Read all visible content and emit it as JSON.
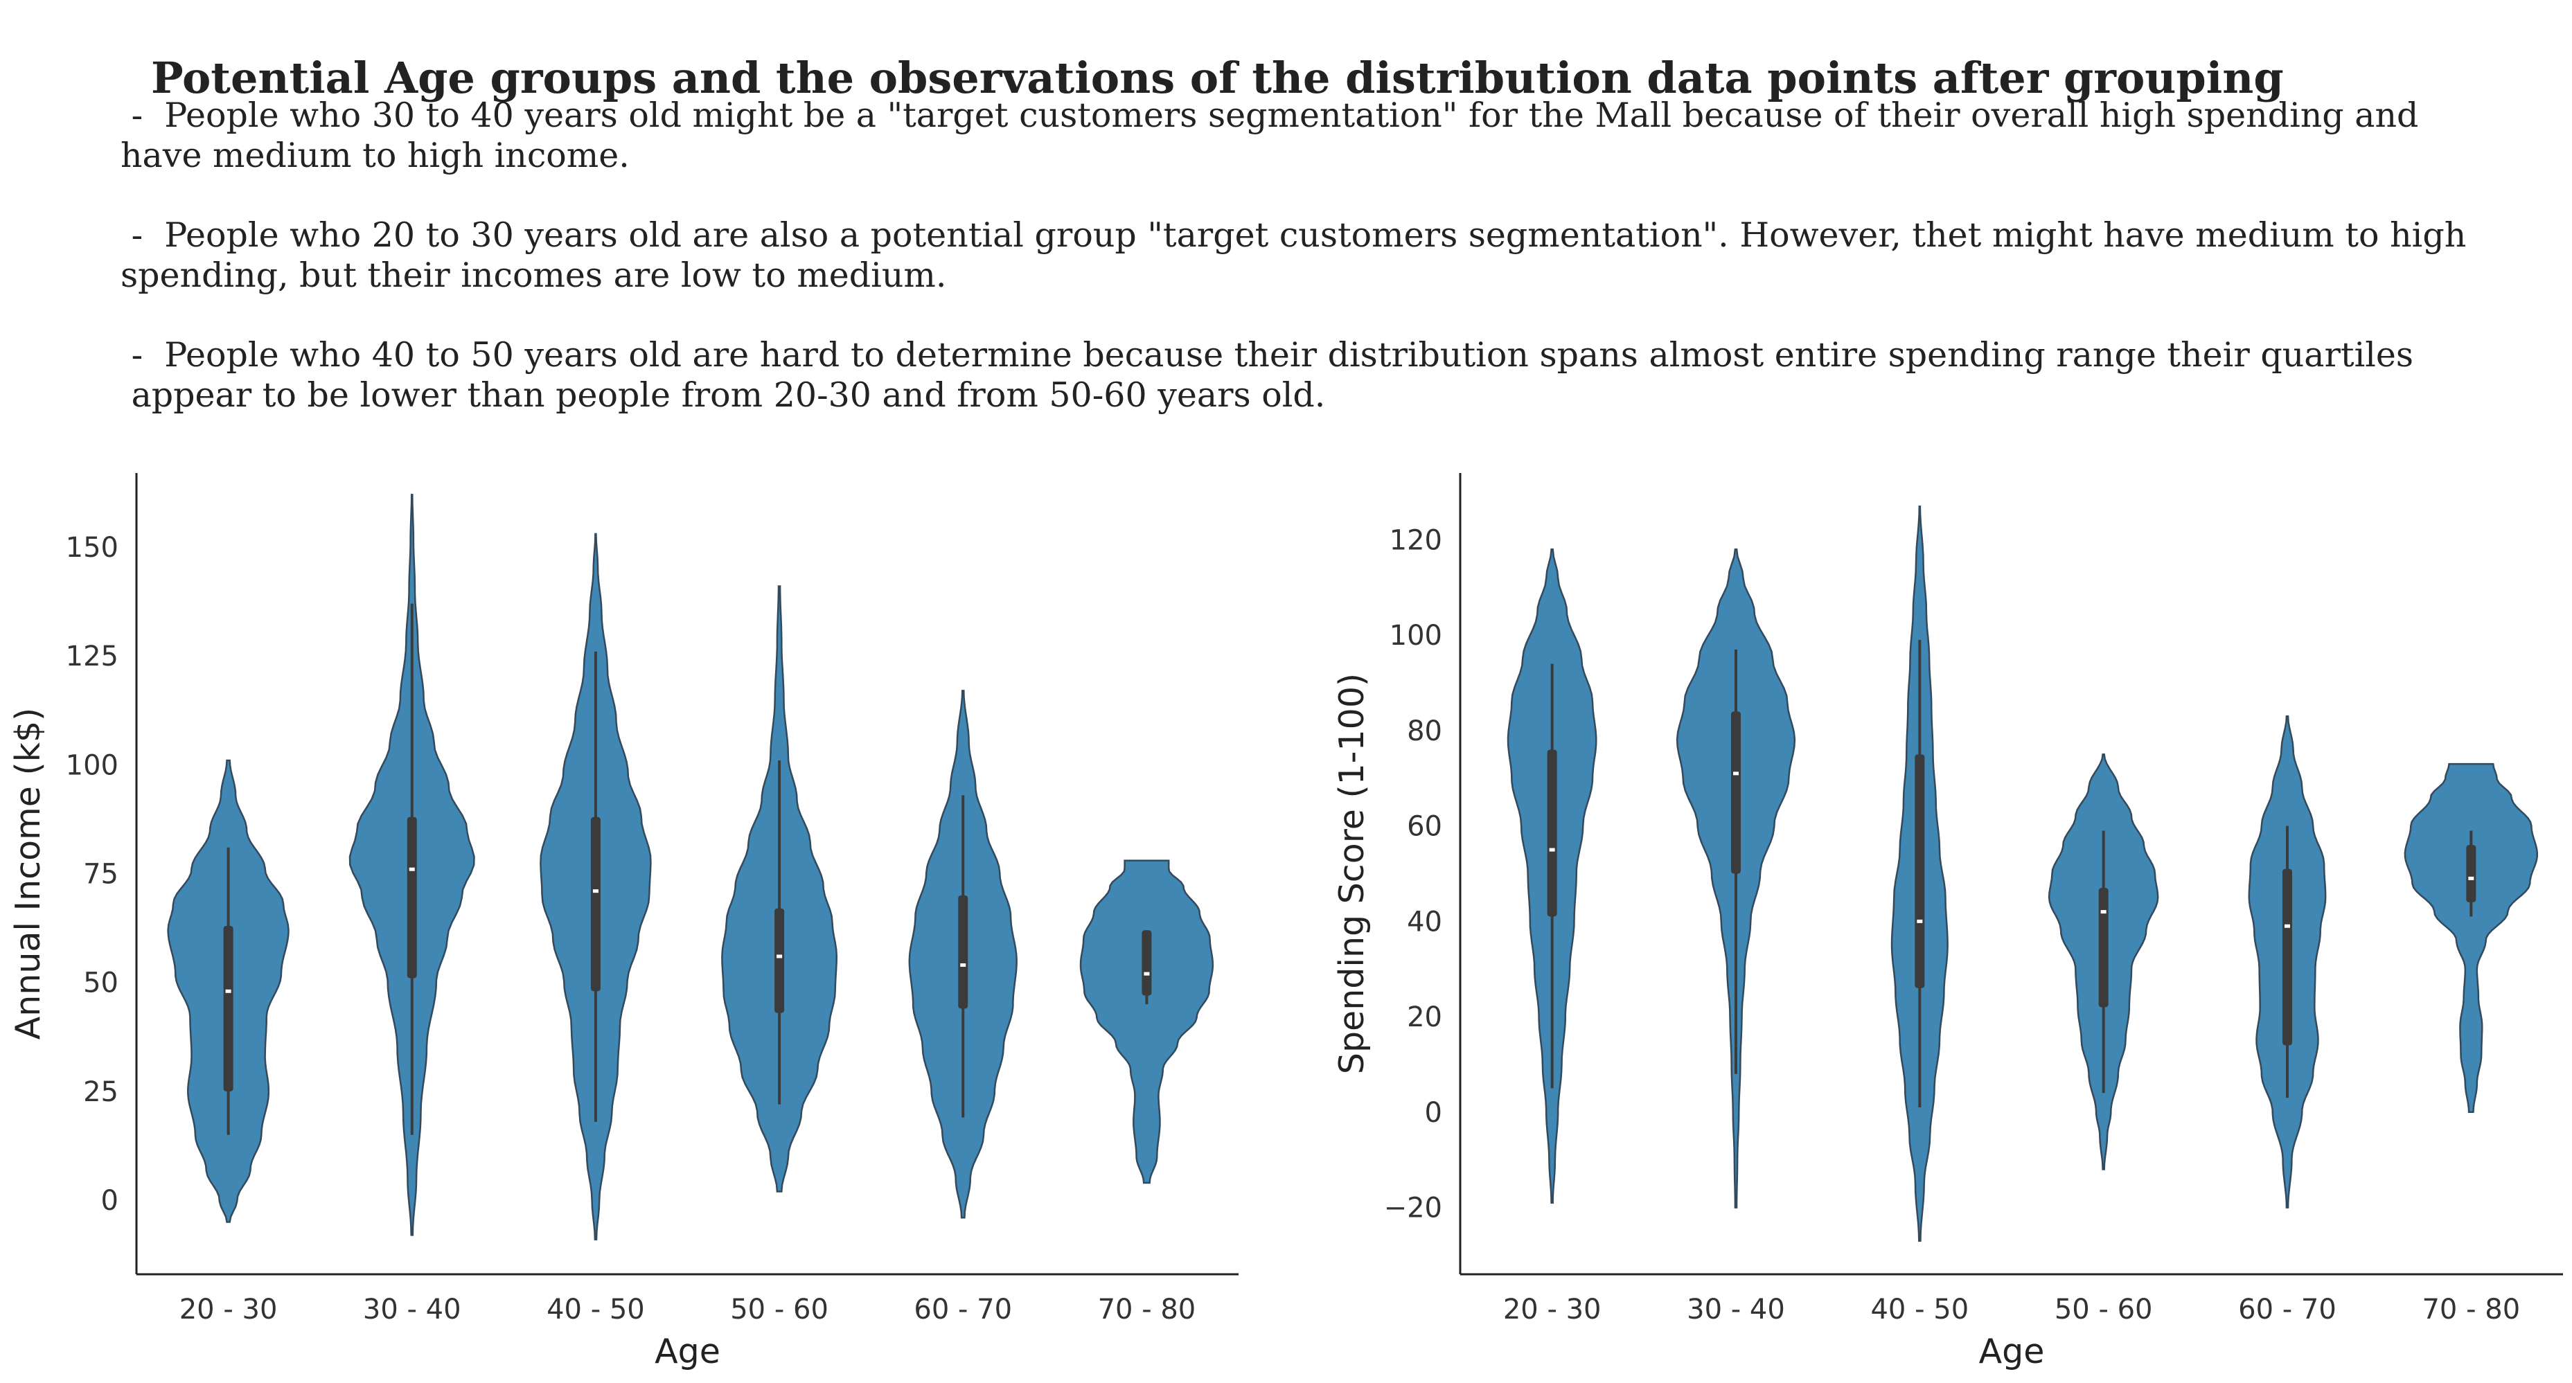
{
  "title": "Potential Age groups and the observations of the distribution data points after grouping",
  "notes": [
    " -  People who 30 to 40 years old might be a \"target customers segmentation\" for the Mall because of their overall high spending and\nhave medium to high income.",
    " -  People who 20 to 30 years old are also a potential group \"target customers segmentation\". However, thet might have medium to high\nspending, but their incomes are low to medium.",
    " -  People who 40 to 50 years old are hard to determine because their distribution spans almost entire spending range their quartiles\n appear to be lower than people from 20-30 and from 50-60 years old."
  ],
  "colors": {
    "violin_fill": "#4187b4",
    "violin_edge": "#33495c",
    "box": "#3b3b3b",
    "median": "#ffffff",
    "axis": "#222222"
  },
  "chart_data": [
    {
      "type": "violin",
      "xlabel": "Age",
      "ylabel": "Annual Income (k$)",
      "categories": [
        "20 - 30",
        "30 - 40",
        "40 - 50",
        "50 - 60",
        "60 - 70",
        "70 - 80"
      ],
      "ylim": [
        -17,
        167
      ],
      "yticks": [
        0,
        25,
        50,
        75,
        100,
        125,
        150
      ],
      "groups": [
        {
          "category": "20 - 30",
          "min": -5,
          "max": 101,
          "whisker_low": 15,
          "whisker_high": 81,
          "q1": 25,
          "median": 48,
          "q3": 63,
          "shape": [
            [
              -5,
              0.02
            ],
            [
              0,
              0.12
            ],
            [
              7,
              0.3
            ],
            [
              15,
              0.45
            ],
            [
              25,
              0.55
            ],
            [
              33,
              0.5
            ],
            [
              42,
              0.52
            ],
            [
              52,
              0.72
            ],
            [
              62,
              0.82
            ],
            [
              68,
              0.75
            ],
            [
              76,
              0.5
            ],
            [
              85,
              0.25
            ],
            [
              93,
              0.1
            ],
            [
              101,
              0.02
            ]
          ]
        },
        {
          "category": "30 - 40",
          "min": -8,
          "max": 162,
          "whisker_low": 15,
          "whisker_high": 137,
          "q1": 51,
          "median": 76,
          "q3": 88,
          "shape": [
            [
              -8,
              0.01
            ],
            [
              5,
              0.06
            ],
            [
              20,
              0.12
            ],
            [
              35,
              0.2
            ],
            [
              50,
              0.33
            ],
            [
              60,
              0.48
            ],
            [
              70,
              0.68
            ],
            [
              78,
              0.85
            ],
            [
              85,
              0.75
            ],
            [
              95,
              0.5
            ],
            [
              105,
              0.3
            ],
            [
              115,
              0.16
            ],
            [
              128,
              0.08
            ],
            [
              140,
              0.04
            ],
            [
              152,
              0.02
            ],
            [
              162,
              0.005
            ]
          ]
        },
        {
          "category": "40 - 50",
          "min": -9,
          "max": 153,
          "whisker_low": 18,
          "whisker_high": 126,
          "q1": 48,
          "median": 71,
          "q3": 88,
          "shape": [
            [
              -9,
              0.01
            ],
            [
              0,
              0.05
            ],
            [
              10,
              0.12
            ],
            [
              20,
              0.22
            ],
            [
              30,
              0.3
            ],
            [
              40,
              0.33
            ],
            [
              50,
              0.43
            ],
            [
              60,
              0.58
            ],
            [
              70,
              0.73
            ],
            [
              78,
              0.75
            ],
            [
              88,
              0.62
            ],
            [
              98,
              0.44
            ],
            [
              110,
              0.28
            ],
            [
              122,
              0.16
            ],
            [
              135,
              0.08
            ],
            [
              145,
              0.03
            ],
            [
              153,
              0.005
            ]
          ]
        },
        {
          "category": "50 - 60",
          "min": 2,
          "max": 141,
          "whisker_low": 22,
          "whisker_high": 101,
          "q1": 43,
          "median": 56,
          "q3": 67,
          "shape": [
            [
              2,
              0.03
            ],
            [
              10,
              0.12
            ],
            [
              20,
              0.3
            ],
            [
              30,
              0.52
            ],
            [
              40,
              0.68
            ],
            [
              48,
              0.76
            ],
            [
              56,
              0.78
            ],
            [
              64,
              0.72
            ],
            [
              72,
              0.6
            ],
            [
              82,
              0.42
            ],
            [
              92,
              0.24
            ],
            [
              102,
              0.12
            ],
            [
              115,
              0.06
            ],
            [
              128,
              0.03
            ],
            [
              141,
              0.01
            ]
          ]
        },
        {
          "category": "60 - 70",
          "min": -4,
          "max": 117,
          "whisker_low": 19,
          "whisker_high": 93,
          "q1": 44,
          "median": 54,
          "q3": 70,
          "shape": [
            [
              -4,
              0.02
            ],
            [
              5,
              0.1
            ],
            [
              15,
              0.28
            ],
            [
              25,
              0.43
            ],
            [
              35,
              0.55
            ],
            [
              45,
              0.68
            ],
            [
              55,
              0.73
            ],
            [
              65,
              0.65
            ],
            [
              75,
              0.5
            ],
            [
              85,
              0.32
            ],
            [
              95,
              0.17
            ],
            [
              105,
              0.08
            ],
            [
              117,
              0.01
            ]
          ]
        },
        {
          "category": "70 - 80",
          "min": 4,
          "max": 78,
          "whisker_low": 45,
          "whisker_high": 62,
          "q1": 47,
          "median": 52,
          "q3": 62,
          "shape": [
            [
              4,
              0.04
            ],
            [
              10,
              0.14
            ],
            [
              18,
              0.18
            ],
            [
              24,
              0.16
            ],
            [
              30,
              0.22
            ],
            [
              36,
              0.42
            ],
            [
              42,
              0.68
            ],
            [
              48,
              0.85
            ],
            [
              54,
              0.9
            ],
            [
              60,
              0.86
            ],
            [
              66,
              0.72
            ],
            [
              72,
              0.5
            ],
            [
              76,
              0.3
            ],
            [
              78,
              0.3
            ]
          ]
        }
      ]
    },
    {
      "type": "violin",
      "xlabel": "Age",
      "ylabel": "Spending Score (1-100)",
      "categories": [
        "20 - 30",
        "30 - 40",
        "40 - 50",
        "50 - 60",
        "60 - 70",
        "70 - 80"
      ],
      "ylim": [
        -34,
        134
      ],
      "yticks": [
        -20,
        0,
        20,
        40,
        60,
        80,
        100,
        120
      ],
      "groups": [
        {
          "category": "20 - 30",
          "min": -19,
          "max": 118,
          "whisker_low": 5,
          "whisker_high": 94,
          "q1": 41,
          "median": 55,
          "q3": 76,
          "shape": [
            [
              -19,
              0.01
            ],
            [
              -10,
              0.04
            ],
            [
              0,
              0.08
            ],
            [
              10,
              0.13
            ],
            [
              20,
              0.18
            ],
            [
              30,
              0.24
            ],
            [
              40,
              0.3
            ],
            [
              50,
              0.33
            ],
            [
              60,
              0.42
            ],
            [
              70,
              0.55
            ],
            [
              78,
              0.6
            ],
            [
              86,
              0.55
            ],
            [
              95,
              0.4
            ],
            [
              105,
              0.2
            ],
            [
              112,
              0.08
            ],
            [
              118,
              0.01
            ]
          ]
        },
        {
          "category": "30 - 40",
          "min": -20,
          "max": 118,
          "whisker_low": 8,
          "whisker_high": 97,
          "q1": 50,
          "median": 71,
          "q3": 84,
          "shape": [
            [
              -20,
              0.01
            ],
            [
              -10,
              0.02
            ],
            [
              0,
              0.04
            ],
            [
              10,
              0.06
            ],
            [
              20,
              0.08
            ],
            [
              30,
              0.12
            ],
            [
              40,
              0.2
            ],
            [
              50,
              0.33
            ],
            [
              60,
              0.52
            ],
            [
              70,
              0.72
            ],
            [
              78,
              0.8
            ],
            [
              86,
              0.7
            ],
            [
              95,
              0.5
            ],
            [
              105,
              0.25
            ],
            [
              112,
              0.1
            ],
            [
              118,
              0.01
            ]
          ]
        },
        {
          "category": "40 - 50",
          "min": -27,
          "max": 127,
          "whisker_low": 1,
          "whisker_high": 99,
          "q1": 26,
          "median": 40,
          "q3": 75,
          "shape": [
            [
              -27,
              0.01
            ],
            [
              -15,
              0.06
            ],
            [
              -5,
              0.14
            ],
            [
              5,
              0.2
            ],
            [
              15,
              0.27
            ],
            [
              25,
              0.33
            ],
            [
              35,
              0.38
            ],
            [
              45,
              0.35
            ],
            [
              55,
              0.27
            ],
            [
              65,
              0.22
            ],
            [
              75,
              0.18
            ],
            [
              85,
              0.16
            ],
            [
              95,
              0.13
            ],
            [
              105,
              0.09
            ],
            [
              115,
              0.05
            ],
            [
              127,
              0.005
            ]
          ]
        },
        {
          "category": "50 - 60",
          "min": -12,
          "max": 75,
          "whisker_low": 4,
          "whisker_high": 59,
          "q1": 22,
          "median": 42,
          "q3": 47,
          "shape": [
            [
              -12,
              0.01
            ],
            [
              -5,
              0.05
            ],
            [
              0,
              0.1
            ],
            [
              8,
              0.2
            ],
            [
              15,
              0.3
            ],
            [
              22,
              0.35
            ],
            [
              30,
              0.38
            ],
            [
              38,
              0.58
            ],
            [
              45,
              0.74
            ],
            [
              50,
              0.7
            ],
            [
              56,
              0.55
            ],
            [
              62,
              0.38
            ],
            [
              68,
              0.2
            ],
            [
              75,
              0.01
            ]
          ]
        },
        {
          "category": "60 - 70",
          "min": -20,
          "max": 83,
          "whisker_low": 3,
          "whisker_high": 60,
          "q1": 14,
          "median": 39,
          "q3": 51,
          "shape": [
            [
              -20,
              0.01
            ],
            [
              -10,
              0.06
            ],
            [
              0,
              0.2
            ],
            [
              8,
              0.35
            ],
            [
              15,
              0.42
            ],
            [
              22,
              0.37
            ],
            [
              30,
              0.38
            ],
            [
              38,
              0.45
            ],
            [
              45,
              0.52
            ],
            [
              52,
              0.5
            ],
            [
              60,
              0.35
            ],
            [
              68,
              0.2
            ],
            [
              76,
              0.08
            ],
            [
              83,
              0.01
            ]
          ]
        },
        {
          "category": "70 - 80",
          "min": 0,
          "max": 73,
          "whisker_low": 41,
          "whisker_high": 59,
          "q1": 44,
          "median": 49,
          "q3": 56,
          "shape": [
            [
              0,
              0.03
            ],
            [
              6,
              0.08
            ],
            [
              12,
              0.14
            ],
            [
              18,
              0.15
            ],
            [
              24,
              0.1
            ],
            [
              30,
              0.08
            ],
            [
              36,
              0.2
            ],
            [
              42,
              0.5
            ],
            [
              48,
              0.8
            ],
            [
              54,
              0.9
            ],
            [
              60,
              0.82
            ],
            [
              66,
              0.55
            ],
            [
              70,
              0.35
            ],
            [
              73,
              0.3
            ]
          ]
        }
      ]
    }
  ]
}
